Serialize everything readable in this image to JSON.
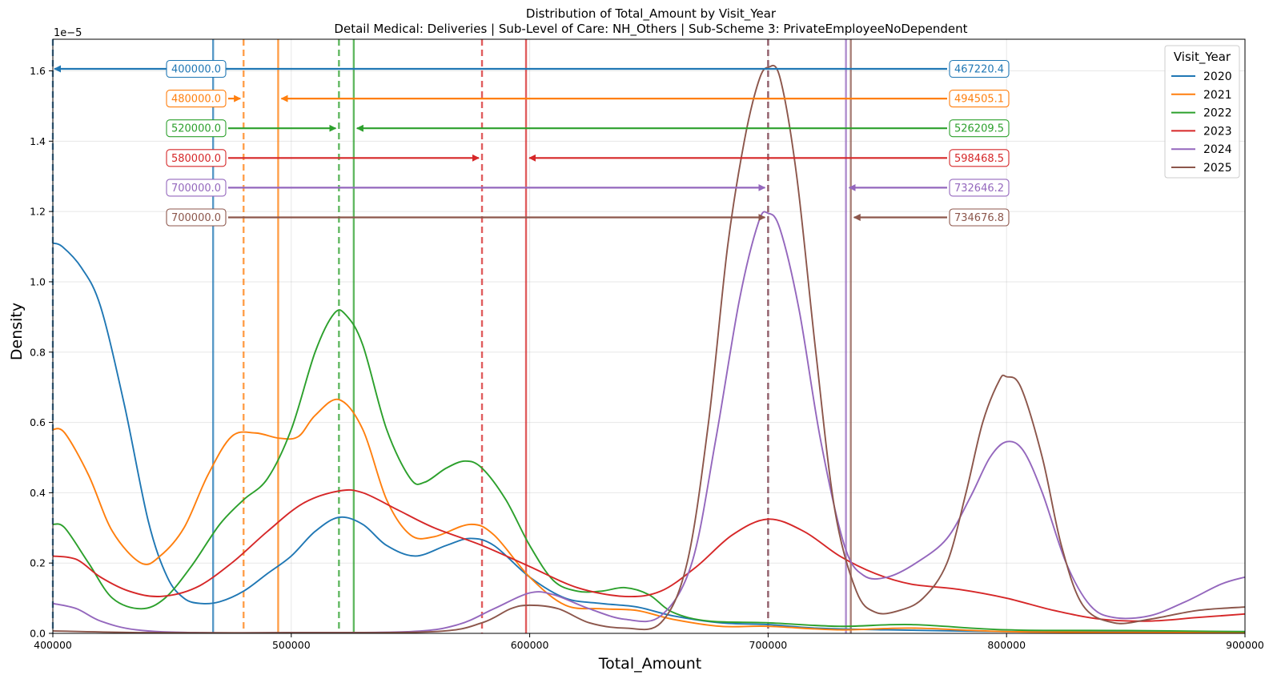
{
  "chart_data": {
    "type": "line",
    "title": "Distribution of Total_Amount by Visit_Year",
    "subtitle": "Detail Medical: Deliveries | Sub-Level of Care: NH_Others | Sub-Scheme 3: PrivateEmployeeNoDependent",
    "xlabel": "Total_Amount",
    "ylabel": "Density",
    "y_offset_label": "1e−5",
    "xlim": [
      400000,
      900000
    ],
    "ylim": [
      0,
      1.69
    ],
    "x_ticks": [
      400000,
      500000,
      600000,
      700000,
      800000,
      900000
    ],
    "x_tick_labels": [
      "400000",
      "500000",
      "600000",
      "700000",
      "800000",
      "900000"
    ],
    "y_ticks": [
      0,
      0.2,
      0.4,
      0.6,
      0.8,
      1.0,
      1.2,
      1.4,
      1.6
    ],
    "y_tick_labels": [
      "0.0",
      "0.2",
      "0.4",
      "0.6",
      "0.8",
      "1.0",
      "1.2",
      "1.4",
      "1.6"
    ],
    "grid": true,
    "legend": {
      "title": "Visit_Year",
      "placement": "top-right"
    },
    "series": [
      {
        "name": "2020",
        "color": "#1f77b4",
        "median": 400000.0,
        "median_label": "400000.0",
        "mean": 467220.4,
        "mean_label": "467220.4",
        "points": [
          [
            400000,
            1.11
          ],
          [
            404000,
            1.1
          ],
          [
            412000,
            1.04
          ],
          [
            420000,
            0.93
          ],
          [
            430000,
            0.65
          ],
          [
            440000,
            0.32
          ],
          [
            448000,
            0.16
          ],
          [
            455000,
            0.1
          ],
          [
            462000,
            0.085
          ],
          [
            470000,
            0.09
          ],
          [
            480000,
            0.12
          ],
          [
            490000,
            0.17
          ],
          [
            500000,
            0.22
          ],
          [
            510000,
            0.29
          ],
          [
            520000,
            0.33
          ],
          [
            530000,
            0.31
          ],
          [
            540000,
            0.25
          ],
          [
            552000,
            0.22
          ],
          [
            565000,
            0.25
          ],
          [
            575000,
            0.27
          ],
          [
            585000,
            0.25
          ],
          [
            600000,
            0.16
          ],
          [
            615000,
            0.1
          ],
          [
            630000,
            0.085
          ],
          [
            645000,
            0.075
          ],
          [
            660000,
            0.05
          ],
          [
            680000,
            0.03
          ],
          [
            700000,
            0.025
          ],
          [
            720000,
            0.015
          ],
          [
            750000,
            0.01
          ],
          [
            800000,
            0.005
          ],
          [
            850000,
            0.005
          ],
          [
            900000,
            0.005
          ]
        ]
      },
      {
        "name": "2021",
        "color": "#ff7f0e",
        "median": 480000.0,
        "median_label": "480000.0",
        "mean": 494505.1,
        "mean_label": "494505.1",
        "points": [
          [
            400000,
            0.58
          ],
          [
            405000,
            0.57
          ],
          [
            415000,
            0.45
          ],
          [
            425000,
            0.29
          ],
          [
            437000,
            0.2
          ],
          [
            445000,
            0.22
          ],
          [
            455000,
            0.3
          ],
          [
            465000,
            0.45
          ],
          [
            475000,
            0.56
          ],
          [
            485000,
            0.57
          ],
          [
            495000,
            0.555
          ],
          [
            503000,
            0.56
          ],
          [
            510000,
            0.62
          ],
          [
            520000,
            0.665
          ],
          [
            530000,
            0.58
          ],
          [
            540000,
            0.38
          ],
          [
            550000,
            0.28
          ],
          [
            560000,
            0.275
          ],
          [
            575000,
            0.31
          ],
          [
            585000,
            0.28
          ],
          [
            600000,
            0.16
          ],
          [
            615000,
            0.08
          ],
          [
            630000,
            0.07
          ],
          [
            645000,
            0.065
          ],
          [
            660000,
            0.04
          ],
          [
            680000,
            0.02
          ],
          [
            700000,
            0.02
          ],
          [
            730000,
            0.01
          ],
          [
            760000,
            0.015
          ],
          [
            800000,
            0.005
          ],
          [
            850000,
            0.003
          ],
          [
            900000,
            0.002
          ]
        ]
      },
      {
        "name": "2022",
        "color": "#2ca02c",
        "median": 520000.0,
        "median_label": "520000.0",
        "mean": 526209.5,
        "mean_label": "526209.5",
        "points": [
          [
            400000,
            0.31
          ],
          [
            405000,
            0.3
          ],
          [
            415000,
            0.2
          ],
          [
            425000,
            0.1
          ],
          [
            437000,
            0.07
          ],
          [
            447000,
            0.1
          ],
          [
            458000,
            0.19
          ],
          [
            470000,
            0.31
          ],
          [
            480000,
            0.38
          ],
          [
            490000,
            0.44
          ],
          [
            500000,
            0.58
          ],
          [
            510000,
            0.8
          ],
          [
            518000,
            0.91
          ],
          [
            523000,
            0.905
          ],
          [
            530000,
            0.82
          ],
          [
            540000,
            0.58
          ],
          [
            550000,
            0.44
          ],
          [
            556000,
            0.43
          ],
          [
            565000,
            0.47
          ],
          [
            573000,
            0.49
          ],
          [
            580000,
            0.47
          ],
          [
            590000,
            0.38
          ],
          [
            600000,
            0.25
          ],
          [
            610000,
            0.15
          ],
          [
            620000,
            0.12
          ],
          [
            630000,
            0.12
          ],
          [
            640000,
            0.13
          ],
          [
            650000,
            0.11
          ],
          [
            660000,
            0.06
          ],
          [
            675000,
            0.035
          ],
          [
            700000,
            0.03
          ],
          [
            730000,
            0.02
          ],
          [
            760000,
            0.025
          ],
          [
            800000,
            0.01
          ],
          [
            850000,
            0.008
          ],
          [
            900000,
            0.005
          ]
        ]
      },
      {
        "name": "2023",
        "color": "#d62728",
        "median": 580000.0,
        "median_label": "580000.0",
        "mean": 598468.5,
        "mean_label": "598468.5",
        "points": [
          [
            400000,
            0.22
          ],
          [
            410000,
            0.21
          ],
          [
            420000,
            0.16
          ],
          [
            432000,
            0.12
          ],
          [
            445000,
            0.105
          ],
          [
            460000,
            0.13
          ],
          [
            475000,
            0.2
          ],
          [
            490000,
            0.29
          ],
          [
            505000,
            0.37
          ],
          [
            520000,
            0.405
          ],
          [
            530000,
            0.4
          ],
          [
            545000,
            0.35
          ],
          [
            560000,
            0.3
          ],
          [
            580000,
            0.25
          ],
          [
            600000,
            0.19
          ],
          [
            620000,
            0.13
          ],
          [
            640000,
            0.105
          ],
          [
            655000,
            0.12
          ],
          [
            670000,
            0.19
          ],
          [
            685000,
            0.28
          ],
          [
            700000,
            0.325
          ],
          [
            715000,
            0.29
          ],
          [
            730000,
            0.22
          ],
          [
            745000,
            0.17
          ],
          [
            760000,
            0.14
          ],
          [
            780000,
            0.125
          ],
          [
            800000,
            0.1
          ],
          [
            820000,
            0.065
          ],
          [
            840000,
            0.04
          ],
          [
            860000,
            0.035
          ],
          [
            880000,
            0.045
          ],
          [
            900000,
            0.055
          ]
        ]
      },
      {
        "name": "2024",
        "color": "#9467bd",
        "median": 700000.0,
        "median_label": "700000.0",
        "mean": 732646.2,
        "mean_label": "732646.2",
        "points": [
          [
            400000,
            0.085
          ],
          [
            410000,
            0.07
          ],
          [
            420000,
            0.035
          ],
          [
            435000,
            0.01
          ],
          [
            460000,
            0.002
          ],
          [
            500000,
            0.002
          ],
          [
            550000,
            0.005
          ],
          [
            570000,
            0.025
          ],
          [
            585000,
            0.07
          ],
          [
            600000,
            0.115
          ],
          [
            610000,
            0.11
          ],
          [
            625000,
            0.07
          ],
          [
            640000,
            0.04
          ],
          [
            655000,
            0.05
          ],
          [
            668000,
            0.2
          ],
          [
            678000,
            0.55
          ],
          [
            688000,
            0.95
          ],
          [
            696000,
            1.17
          ],
          [
            700000,
            1.195
          ],
          [
            705000,
            1.15
          ],
          [
            713000,
            0.92
          ],
          [
            722000,
            0.55
          ],
          [
            732000,
            0.25
          ],
          [
            740000,
            0.165
          ],
          [
            750000,
            0.16
          ],
          [
            762000,
            0.2
          ],
          [
            775000,
            0.27
          ],
          [
            785000,
            0.39
          ],
          [
            793000,
            0.5
          ],
          [
            800000,
            0.545
          ],
          [
            807000,
            0.52
          ],
          [
            815000,
            0.4
          ],
          [
            825000,
            0.2
          ],
          [
            835000,
            0.08
          ],
          [
            845000,
            0.045
          ],
          [
            860000,
            0.05
          ],
          [
            875000,
            0.09
          ],
          [
            890000,
            0.14
          ],
          [
            900000,
            0.16
          ]
        ]
      },
      {
        "name": "2025",
        "color": "#8c564b",
        "median": 700000.0,
        "median_label": "700000.0",
        "mean": 734676.8,
        "mean_label": "734676.8",
        "points": [
          [
            400000,
            0.007
          ],
          [
            440000,
            0.002
          ],
          [
            500000,
            0.002
          ],
          [
            560000,
            0.005
          ],
          [
            580000,
            0.03
          ],
          [
            592000,
            0.07
          ],
          [
            600000,
            0.08
          ],
          [
            612000,
            0.07
          ],
          [
            625000,
            0.03
          ],
          [
            640000,
            0.015
          ],
          [
            655000,
            0.03
          ],
          [
            666000,
            0.2
          ],
          [
            675000,
            0.6
          ],
          [
            683000,
            1.1
          ],
          [
            690000,
            1.4
          ],
          [
            696000,
            1.57
          ],
          [
            700000,
            1.61
          ],
          [
            705000,
            1.58
          ],
          [
            712000,
            1.3
          ],
          [
            720000,
            0.8
          ],
          [
            728000,
            0.35
          ],
          [
            737000,
            0.12
          ],
          [
            745000,
            0.06
          ],
          [
            755000,
            0.065
          ],
          [
            765000,
            0.1
          ],
          [
            775000,
            0.2
          ],
          [
            783000,
            0.4
          ],
          [
            790000,
            0.6
          ],
          [
            797000,
            0.72
          ],
          [
            800000,
            0.73
          ],
          [
            806000,
            0.7
          ],
          [
            815000,
            0.5
          ],
          [
            823000,
            0.25
          ],
          [
            832000,
            0.08
          ],
          [
            845000,
            0.03
          ],
          [
            860000,
            0.04
          ],
          [
            880000,
            0.065
          ],
          [
            900000,
            0.075
          ]
        ]
      }
    ]
  }
}
